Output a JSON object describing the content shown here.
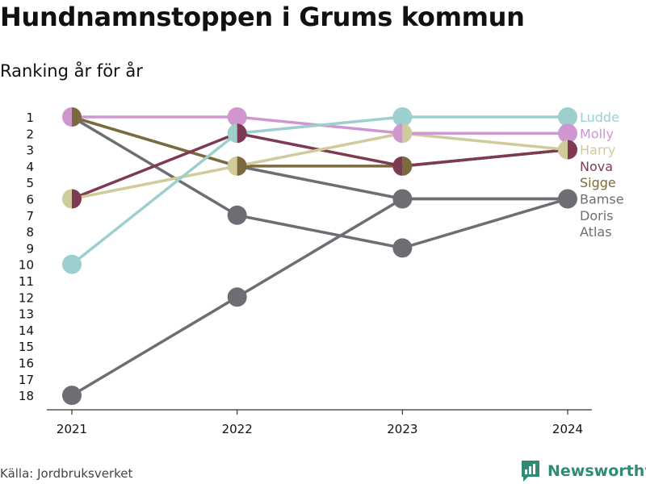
{
  "header": {
    "title": "Hundnamnstoppen i Grums kommun",
    "subtitle": "Ranking år för år"
  },
  "footer": {
    "source": "Källa: Jordbruksverket",
    "brand": "Newsworthy"
  },
  "colors": {
    "axis": "#333333",
    "text": "#111111",
    "brand": "#2e8b74"
  },
  "icons": [
    "newsworthy-logo-icon"
  ],
  "chart_data": {
    "type": "line",
    "title": "Hundnamnstoppen i Grums kommun",
    "subtitle": "Ranking år för år",
    "x": [
      "2021",
      "2022",
      "2023",
      "2024"
    ],
    "y_ticks": [
      1,
      2,
      3,
      4,
      5,
      6,
      7,
      8,
      9,
      10,
      11,
      12,
      13,
      14,
      15,
      16,
      17,
      18
    ],
    "ylim": [
      1,
      18
    ],
    "y_reversed": true,
    "grid": false,
    "legend": "right, labels at line ends",
    "series": [
      {
        "name": "Ludde",
        "color": "#9ecfcf",
        "values": [
          10,
          2,
          1,
          1
        ]
      },
      {
        "name": "Molly",
        "color": "#cf96d0",
        "values": [
          1,
          1,
          2,
          2
        ]
      },
      {
        "name": "Harry",
        "color": "#cfcb9a",
        "values": [
          6,
          4,
          2,
          3
        ]
      },
      {
        "name": "Nova",
        "color": "#7d3a52",
        "values": [
          6,
          2,
          4,
          3
        ]
      },
      {
        "name": "Sigge",
        "color": "#7a6a3e",
        "values": [
          1,
          4,
          4,
          3
        ]
      },
      {
        "name": "Bamse",
        "color": "#6e6d73",
        "values": [
          1,
          4,
          6,
          6
        ]
      },
      {
        "name": "Doris",
        "color": "#6e6d73",
        "values": [
          1,
          7,
          9,
          6
        ]
      },
      {
        "name": "Atlas",
        "color": "#6e6d73",
        "values": [
          18,
          12,
          6,
          6
        ]
      }
    ]
  }
}
